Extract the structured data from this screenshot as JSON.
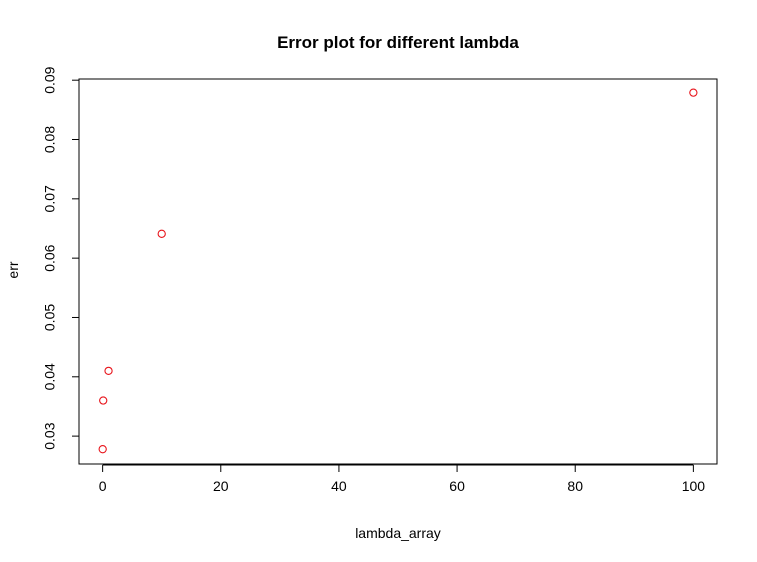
{
  "chart_data": {
    "type": "scatter",
    "title": "Error plot for different lambda",
    "xlabel": "lambda_array",
    "ylabel": "err",
    "xlim": [
      -4,
      104
    ],
    "ylim": [
      0.0253,
      0.0902
    ],
    "xticks": [
      0,
      20,
      40,
      60,
      80,
      100
    ],
    "yticks": [
      0.03,
      0.04,
      0.05,
      0.06,
      0.07,
      0.08,
      0.09
    ],
    "xtick_labels": [
      "0",
      "20",
      "40",
      "60",
      "80",
      "100"
    ],
    "ytick_labels": [
      "0.03",
      "0.04",
      "0.05",
      "0.06",
      "0.07",
      "0.08",
      "0.09"
    ],
    "grid": false,
    "legend": "none",
    "marker": "open-circle",
    "point_color": "#e8141b",
    "points": [
      {
        "x": 0.01,
        "y": 0.0278
      },
      {
        "x": 0.1,
        "y": 0.036
      },
      {
        "x": 1,
        "y": 0.041
      },
      {
        "x": 10,
        "y": 0.0641
      },
      {
        "x": 100,
        "y": 0.0879
      }
    ]
  }
}
